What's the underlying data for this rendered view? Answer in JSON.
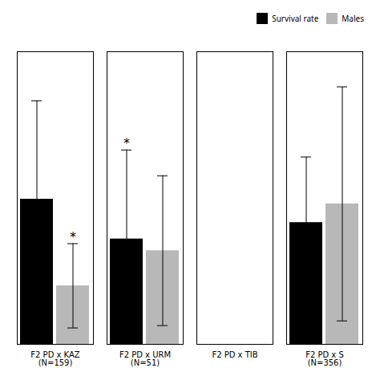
{
  "chart_data": {
    "type": "bar",
    "categories": [
      "F2 PD x KAZ\n(N=159)",
      "F2 PD x URM\n(N=51)",
      "F2 PD x TIB",
      "F2 PD x S\n(N=356)"
    ],
    "series": [
      {
        "name": "Survival rate",
        "color": "#000000",
        "values": [
          0.62,
          0.45,
          0.0,
          0.52
        ],
        "errors": [
          0.42,
          0.38,
          0.0,
          0.28
        ]
      },
      {
        "name": "Males",
        "color": "#b8b8b8",
        "values": [
          0.25,
          0.4,
          0.0,
          0.6
        ],
        "errors": [
          0.18,
          0.32,
          0.0,
          0.5
        ]
      }
    ],
    "ylim": [
      0,
      1.25
    ],
    "tick_labels": "x",
    "grid": false,
    "legend": "upper right",
    "annotations": [
      {
        "text": "*",
        "category": "F2 PD x KAZ\n(N=159)",
        "series": "Males"
      },
      {
        "text": "*",
        "category": "F2 PD x URM\n(N=51)",
        "series": "Survival rate"
      }
    ]
  }
}
